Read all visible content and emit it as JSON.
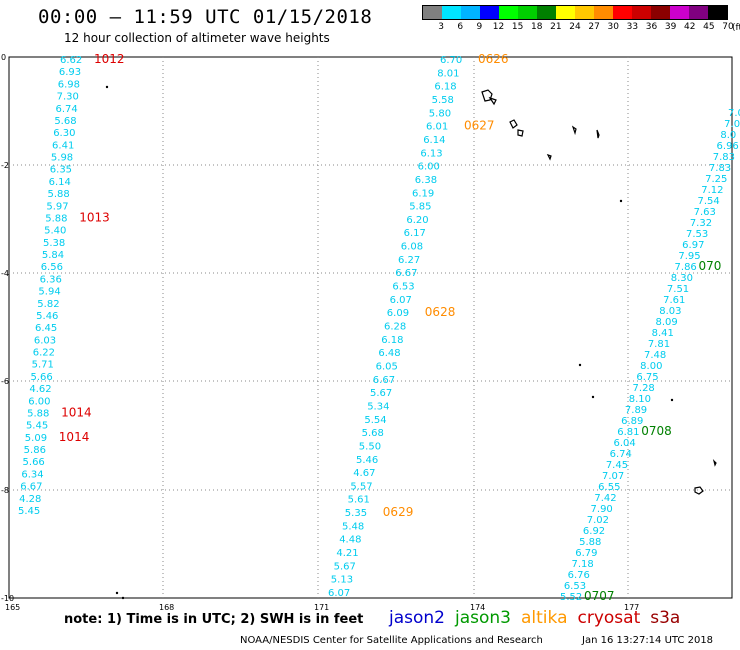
{
  "header": {
    "title": "00:00 – 11:59 UTC 01/15/2018",
    "subtitle": "12 hour collection of altimeter wave heights"
  },
  "legend": {
    "unit": "(ft)",
    "colors": [
      "#808080",
      "#00e5ff",
      "#00b4ff",
      "#0000ff",
      "#00ff00",
      "#00d000",
      "#008000",
      "#ffff00",
      "#ffc800",
      "#ff8c00",
      "#ff0000",
      "#cc0000",
      "#8b0000",
      "#cc00cc",
      "#800080",
      "#000000"
    ],
    "labels": [
      "3",
      "6",
      "9",
      "12",
      "15",
      "18",
      "21",
      "24",
      "27",
      "30",
      "33",
      "36",
      "39",
      "42",
      "45",
      "70"
    ]
  },
  "map": {
    "x_ticks": [
      "165",
      "168",
      "171",
      "174",
      "177"
    ],
    "y_ticks": [
      "0",
      "-2",
      "-4",
      "-6",
      "-8",
      "-10"
    ],
    "tracks": [
      {
        "mission": "cryosat",
        "color": "#00ccee",
        "values": [
          "6.62",
          "6.93",
          "6.98",
          "7.30",
          "6.74",
          "5.68",
          "6.30",
          "6.41",
          "5.98",
          "6.35",
          "6.14",
          "5.88",
          "5.97",
          "5.88",
          "5.40",
          "5.38",
          "5.84",
          "6.56",
          "6.36",
          "5.94",
          "5.82",
          "5.46",
          "6.45",
          "6.03",
          "6.22",
          "5.71",
          "5.66",
          "4.62",
          "6.00",
          "5.88",
          "5.45",
          "5.09",
          "5.86",
          "5.66",
          "6.34",
          "6.67",
          "4.28",
          "5.45"
        ],
        "times": [
          {
            "text": "1012",
            "color": "#dd0000",
            "after": 0
          },
          {
            "text": "1013",
            "color": "#dd0000",
            "after": 13
          },
          {
            "text": "1014",
            "color": "#dd0000",
            "after": 29
          },
          {
            "text": "1014",
            "color": "#dd0000",
            "after": 31
          }
        ]
      },
      {
        "mission": "altika",
        "color": "#00ccee",
        "values": [
          "6.70",
          "8.01",
          "6.18",
          "5.58",
          "5.80",
          "6.01",
          "6.14",
          "6.13",
          "6.00",
          "6.38",
          "6.19",
          "5.85",
          "6.20",
          "6.17",
          "6.08",
          "6.27",
          "6.67",
          "6.53",
          "6.07",
          "6.09",
          "6.28",
          "6.18",
          "6.48",
          "6.05",
          "6.67",
          "5.67",
          "5.34",
          "5.54",
          "5.68",
          "5.50",
          "5.46",
          "4.67",
          "5.57",
          "5.61",
          "5.35",
          "5.48",
          "4.48",
          "4.21",
          "5.67",
          "5.13",
          "6.07"
        ],
        "times": [
          {
            "text": "0626",
            "color": "#ff8c00",
            "after": 0
          },
          {
            "text": "0627",
            "color": "#ff8c00",
            "after": 5
          },
          {
            "text": "0628",
            "color": "#ff8c00",
            "after": 19
          },
          {
            "text": "0629",
            "color": "#ff8c00",
            "after": 34
          }
        ]
      },
      {
        "mission": "jason3",
        "color": "#00ccee",
        "values": [
          "7.0",
          "7.0",
          "8.0",
          "6.96",
          "7.83",
          "7.83",
          "7.25",
          "7.12",
          "7.54",
          "7.63",
          "7.32",
          "7.53",
          "6.97",
          "7.95",
          "7.86",
          "8.30",
          "7.51",
          "7.61",
          "8.03",
          "8.09",
          "8.41",
          "7.81",
          "7.48",
          "8.00",
          "6.75",
          "7.28",
          "8.10",
          "7.89",
          "6.89",
          "6.81",
          "6.04",
          "6.74",
          "7.45",
          "7.07",
          "6.55",
          "7.42",
          "7.90",
          "7.02",
          "6.92",
          "5.88",
          "6.79",
          "7.18",
          "6.76",
          "6.53",
          "5.52"
        ],
        "times": [
          {
            "text": "070",
            "color": "#008000",
            "after": 14
          },
          {
            "text": "0708",
            "color": "#008000",
            "after": 29
          },
          {
            "text": "0707",
            "color": "#008000",
            "after": 44
          }
        ]
      }
    ]
  },
  "footer": {
    "note": "note: 1) Time is in UTC; 2) SWH is in feet",
    "missions": [
      {
        "name": "jason2",
        "color": "#0000cc"
      },
      {
        "name": "jason3",
        "color": "#009900"
      },
      {
        "name": "altika",
        "color": "#ff9900"
      },
      {
        "name": "cryosat",
        "color": "#cc0000"
      },
      {
        "name": "s3a",
        "color": "#990000"
      }
    ],
    "credit": "NOAA/NESDIS Center for Satellite Applications and Research",
    "date": "Jan 16 13:27:14 UTC 2018"
  }
}
